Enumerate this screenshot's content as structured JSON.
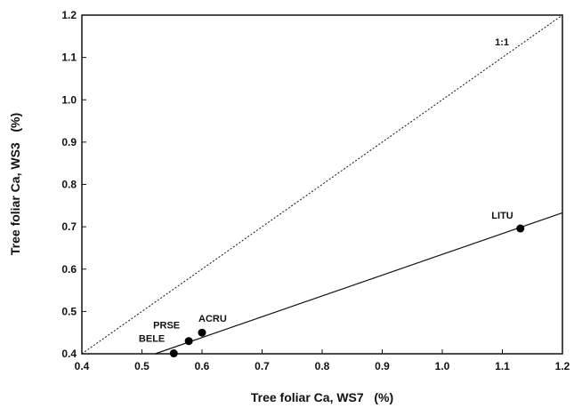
{
  "chart_data": {
    "type": "scatter",
    "xlabel": "Tree foliar Ca, WS7   (%)",
    "ylabel": "Tree foliar Ca, WS3   (%)",
    "xlim": [
      0.4,
      1.2
    ],
    "ylim": [
      0.4,
      1.2
    ],
    "x_ticks": [
      "0.4",
      "0.5",
      "0.6",
      "0.7",
      "0.8",
      "0.9",
      "1.0",
      "1.1",
      "1.2"
    ],
    "y_ticks": [
      "0.4",
      "0.5",
      "0.6",
      "0.7",
      "0.8",
      "0.9",
      "1.0",
      "1.1",
      "1.2"
    ],
    "grid": false,
    "points": [
      {
        "label": "BELE",
        "x": 0.553,
        "y": 0.401
      },
      {
        "label": "PRSE",
        "x": 0.578,
        "y": 0.43
      },
      {
        "label": "ACRU",
        "x": 0.6,
        "y": 0.45
      },
      {
        "label": "LITU",
        "x": 1.13,
        "y": 0.696
      }
    ],
    "reference_line": {
      "label": "1:1",
      "from": [
        0.4,
        0.4
      ],
      "to": [
        1.2,
        1.2
      ],
      "style": "dotted"
    },
    "fit_line": {
      "from": [
        0.522,
        0.4
      ],
      "to": [
        1.2,
        0.733
      ],
      "style": "solid"
    }
  }
}
